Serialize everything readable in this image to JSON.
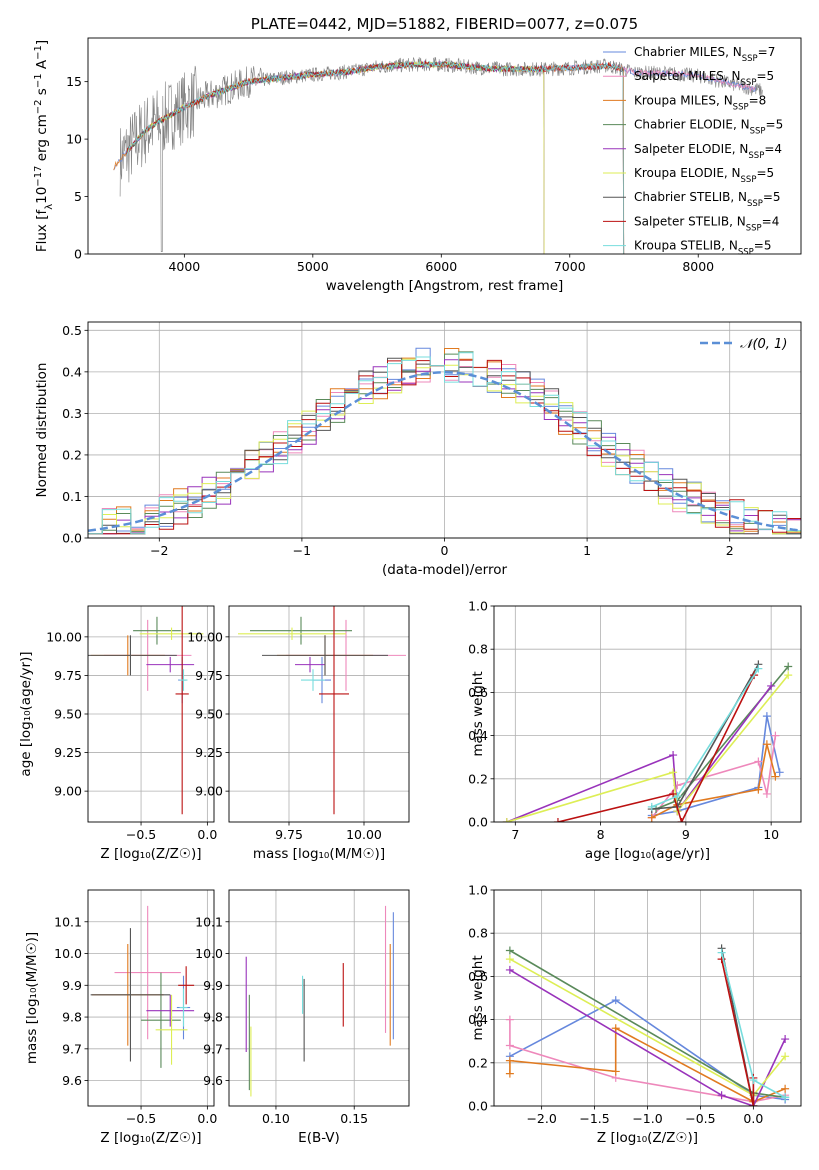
{
  "figure": {
    "title": "PLATE=0442, MJD=51882, FIBERID=0077, z=0.075"
  },
  "colors": {
    "Chabrier MILES": "#6688dd",
    "Salpeter MILES": "#ee88bb",
    "Kroupa MILES": "#e07a20",
    "Chabrier ELODIE": "#5a8a5a",
    "Salpeter ELODIE": "#9933bb",
    "Kroupa ELODIE": "#ddee55",
    "Chabrier STELIB": "#555555",
    "Salpeter STELIB": "#bb1111",
    "Kroupa STELIB": "#77dddd",
    "data": "#808080",
    "gauss": "#5b8fd6"
  },
  "chart_data": [
    {
      "id": "spectrum",
      "type": "line",
      "title": "PLATE=0442, MJD=51882, FIBERID=0077, z=0.075",
      "xlabel": "wavelength [Angstrom, rest frame]",
      "ylabel": "Flux [f_λ 10^-17 erg cm^-2 s^-1 A^-1]",
      "xlim": [
        3250,
        8800
      ],
      "ylim": [
        0,
        18.8
      ],
      "xticks": [
        4000,
        5000,
        6000,
        7000,
        8000
      ],
      "yticks": [
        0,
        5,
        10,
        15
      ],
      "grid": false,
      "legend_position": "right",
      "spectrum_shape": {
        "x": [
          3500,
          3600,
          3700,
          3800,
          4000,
          4200,
          4500,
          4800,
          5000,
          5300,
          5500,
          5800,
          6000,
          6300,
          6500,
          6800,
          7000,
          7300,
          7500,
          7800,
          8000,
          8300,
          8500
        ],
        "y": [
          8.2,
          9.5,
          10.8,
          11.5,
          12.8,
          13.8,
          15.0,
          15.4,
          15.6,
          15.9,
          16.3,
          16.5,
          16.5,
          16.2,
          16.1,
          16.1,
          16.2,
          16.4,
          15.8,
          15.7,
          15.5,
          14.7,
          14.2
        ]
      },
      "legend": [
        {
          "label": "Chabrier MILES",
          "n": "7"
        },
        {
          "label": "Salpeter MILES",
          "n": "5"
        },
        {
          "label": "Kroupa MILES",
          "n": "8"
        },
        {
          "label": "Chabrier ELODIE",
          "n": "5"
        },
        {
          "label": "Salpeter ELODIE",
          "n": "4"
        },
        {
          "label": "Kroupa ELODIE",
          "n": "5"
        },
        {
          "label": "Chabrier STELIB",
          "n": "5"
        },
        {
          "label": "Salpeter STELIB",
          "n": "4"
        },
        {
          "label": "Kroupa STELIB",
          "n": "5"
        }
      ],
      "nssp_label": "N",
      "nssp_sub": "SSP"
    },
    {
      "id": "residuals",
      "type": "histogram",
      "xlabel": "(data-model)/error",
      "ylabel": "Normed distribution",
      "xlim": [
        -2.5,
        2.5
      ],
      "ylim": [
        0,
        0.52
      ],
      "xticks": [
        -2,
        -1,
        0,
        1,
        2
      ],
      "yticks": [
        0.0,
        0.1,
        0.2,
        0.3,
        0.4,
        0.5
      ],
      "grid": true,
      "legend_position": "top-right",
      "gauss_label": "𝒩(0, 1)",
      "bin_width": 0.1
    },
    {
      "id": "age_vs_Z",
      "type": "scatter",
      "xlabel": "Z [log₁₀(Z/Z☉)]",
      "ylabel": "age  [log₁₀(age/yr)]",
      "xlim": [
        -0.9,
        0.05
      ],
      "ylim": [
        8.8,
        10.2
      ],
      "xticks": [
        -0.5,
        0.0
      ],
      "yticks": [
        9.0,
        9.25,
        9.5,
        9.75,
        10.0
      ],
      "grid": true,
      "points": [
        {
          "model": "Chabrier MILES",
          "x": -0.19,
          "y": 9.72,
          "xerr": 0.03,
          "yerr": 0.15
        },
        {
          "model": "Salpeter MILES",
          "x": -0.45,
          "y": 9.88,
          "xerr": 0.33,
          "yerr": 0.23
        },
        {
          "model": "Kroupa MILES",
          "x": -0.6,
          "y": 9.88,
          "xerr": 0.28,
          "yerr": 0.13
        },
        {
          "model": "Chabrier ELODIE",
          "x": -0.38,
          "y": 10.04,
          "xerr": 0.18,
          "yerr": 0.09
        },
        {
          "model": "Salpeter ELODIE",
          "x": -0.28,
          "y": 9.82,
          "xerr": 0.18,
          "yerr": 0.05
        },
        {
          "model": "Kroupa ELODIE",
          "x": -0.27,
          "y": 10.02,
          "xerr": 0.24,
          "yerr": 0.04
        },
        {
          "model": "Chabrier STELIB",
          "x": -0.58,
          "y": 9.88,
          "xerr": 0.35,
          "yerr": 0.13
        },
        {
          "model": "Salpeter STELIB",
          "x": -0.19,
          "y": 9.63,
          "xerr": 0.05,
          "yerr": 0.78
        },
        {
          "model": "Kroupa STELIB",
          "x": -0.18,
          "y": 9.72,
          "xerr": 0.03,
          "yerr": 0.07
        }
      ]
    },
    {
      "id": "age_vs_mass",
      "type": "scatter",
      "xlabel": "mass [log₁₀(M/M☉)]",
      "ylabel": "",
      "xlim": [
        9.55,
        10.15
      ],
      "ylim": [
        8.8,
        10.2
      ],
      "xticks": [
        9.75,
        10.0
      ],
      "yticks": [
        9.0,
        9.25,
        9.5,
        9.75,
        10.0
      ],
      "grid": true,
      "points": [
        {
          "model": "Chabrier MILES",
          "x": 9.86,
          "y": 9.72,
          "xerr": 0.03,
          "yerr": 0.15
        },
        {
          "model": "Salpeter MILES",
          "x": 9.94,
          "y": 9.88,
          "xerr": 0.2,
          "yerr": 0.23
        },
        {
          "model": "Kroupa MILES",
          "x": 9.87,
          "y": 9.88,
          "xerr": 0.16,
          "yerr": 0.13
        },
        {
          "model": "Chabrier ELODIE",
          "x": 9.79,
          "y": 10.04,
          "xerr": 0.17,
          "yerr": 0.09
        },
        {
          "model": "Salpeter ELODIE",
          "x": 9.82,
          "y": 9.82,
          "xerr": 0.05,
          "yerr": 0.05
        },
        {
          "model": "Kroupa ELODIE",
          "x": 9.76,
          "y": 10.02,
          "xerr": 0.18,
          "yerr": 0.04
        },
        {
          "model": "Chabrier STELIB",
          "x": 9.87,
          "y": 9.88,
          "xerr": 0.21,
          "yerr": 0.13
        },
        {
          "model": "Salpeter STELIB",
          "x": 9.9,
          "y": 9.63,
          "xerr": 0.05,
          "yerr": 0.78
        },
        {
          "model": "Kroupa STELIB",
          "x": 9.83,
          "y": 9.72,
          "xerr": 0.04,
          "yerr": 0.07
        }
      ]
    },
    {
      "id": "weight_vs_age",
      "type": "line",
      "xlabel": "age  [log₁₀(age/yr)]",
      "ylabel": "mass weight",
      "xlim": [
        6.75,
        10.35
      ],
      "ylim": [
        0,
        1.0
      ],
      "xticks": [
        7,
        8,
        9,
        10
      ],
      "yticks": [
        0.0,
        0.2,
        0.4,
        0.6,
        0.8,
        1.0
      ],
      "grid": true,
      "series": [
        {
          "model": "Chabrier MILES",
          "x": [
            8.6,
            8.9,
            9.85,
            9.95,
            10.1
          ],
          "y": [
            0.03,
            0.05,
            0.16,
            0.49,
            0.23
          ]
        },
        {
          "model": "Salpeter MILES",
          "x": [
            8.6,
            8.9,
            9.85,
            9.95,
            10.05
          ],
          "y": [
            0.02,
            0.17,
            0.28,
            0.13,
            0.4
          ]
        },
        {
          "model": "Kroupa MILES",
          "x": [
            8.6,
            8.9,
            9.85,
            9.95,
            10.05
          ],
          "y": [
            0.02,
            0.08,
            0.15,
            0.36,
            0.21
          ]
        },
        {
          "model": "Chabrier ELODIE",
          "x": [
            8.65,
            8.9,
            10.2
          ],
          "y": [
            0.06,
            0.1,
            0.72
          ]
        },
        {
          "model": "Salpeter ELODIE",
          "x": [
            6.9,
            8.85,
            8.9,
            10.0
          ],
          "y": [
            0.0,
            0.31,
            0.05,
            0.63
          ]
        },
        {
          "model": "Kroupa ELODIE",
          "x": [
            6.9,
            8.85,
            8.9,
            10.2
          ],
          "y": [
            0.0,
            0.23,
            0.05,
            0.68
          ]
        },
        {
          "model": "Chabrier STELIB",
          "x": [
            8.6,
            8.9,
            9.85
          ],
          "y": [
            0.06,
            0.07,
            0.73
          ]
        },
        {
          "model": "Salpeter STELIB",
          "x": [
            7.5,
            8.85,
            8.95,
            9.8
          ],
          "y": [
            0.0,
            0.13,
            0.0,
            0.68
          ]
        },
        {
          "model": "Kroupa STELIB",
          "x": [
            8.6,
            8.9,
            9.85
          ],
          "y": [
            0.07,
            0.12,
            0.71
          ]
        }
      ]
    },
    {
      "id": "mass_vs_Z",
      "type": "scatter",
      "xlabel": "Z [log₁₀(Z/Z☉)]",
      "ylabel": "mass [log₁₀(M/M☉)]",
      "xlim": [
        -0.9,
        0.05
      ],
      "ylim": [
        9.52,
        10.2
      ],
      "xticks": [
        -0.5,
        0.0
      ],
      "yticks": [
        9.6,
        9.7,
        9.8,
        9.9,
        10.0,
        10.1
      ],
      "grid": true,
      "points": [
        {
          "model": "Chabrier MILES",
          "x": -0.18,
          "y": 9.83,
          "xerr": 0.05,
          "yerr": 0.1
        },
        {
          "model": "Salpeter MILES",
          "x": -0.45,
          "y": 9.94,
          "xerr": 0.25,
          "yerr": 0.21
        },
        {
          "model": "Kroupa MILES",
          "x": -0.6,
          "y": 9.87,
          "xerr": 0.27,
          "yerr": 0.16
        },
        {
          "model": "Chabrier ELODIE",
          "x": -0.35,
          "y": 9.79,
          "xerr": 0.15,
          "yerr": 0.15
        },
        {
          "model": "Salpeter ELODIE",
          "x": -0.28,
          "y": 9.82,
          "xerr": 0.18,
          "yerr": 0.05
        },
        {
          "model": "Kroupa ELODIE",
          "x": -0.27,
          "y": 9.76,
          "xerr": 0.12,
          "yerr": 0.11
        },
        {
          "model": "Chabrier STELIB",
          "x": -0.58,
          "y": 9.87,
          "xerr": 0.3,
          "yerr": 0.21
        },
        {
          "model": "Salpeter STELIB",
          "x": -0.16,
          "y": 9.9,
          "xerr": 0.06,
          "yerr": 0.06
        },
        {
          "model": "Kroupa STELIB",
          "x": -0.18,
          "y": 9.83,
          "xerr": 0.03,
          "yerr": 0.06
        }
      ]
    },
    {
      "id": "mass_vs_ebv",
      "type": "scatter",
      "xlabel": "E(B-V)",
      "ylabel": "",
      "xlim": [
        0.07,
        0.185
      ],
      "ylim": [
        9.52,
        10.2
      ],
      "xticks": [
        0.1,
        0.15
      ],
      "yticks": [
        9.6,
        9.7,
        9.8,
        9.9,
        10.0,
        10.1
      ],
      "grid": true,
      "points": [
        {
          "model": "Chabrier MILES",
          "x": 0.175,
          "y": 9.93,
          "xerr": 0,
          "yerr": 0.2
        },
        {
          "model": "Salpeter MILES",
          "x": 0.17,
          "y": 9.95,
          "xerr": 0,
          "yerr": 0.2
        },
        {
          "model": "Kroupa MILES",
          "x": 0.173,
          "y": 9.87,
          "xerr": 0,
          "yerr": 0.16
        },
        {
          "model": "Chabrier ELODIE",
          "x": 0.083,
          "y": 9.72,
          "xerr": 0,
          "yerr": 0.15
        },
        {
          "model": "Salpeter ELODIE",
          "x": 0.081,
          "y": 9.84,
          "xerr": 0,
          "yerr": 0.15
        },
        {
          "model": "Kroupa ELODIE",
          "x": 0.084,
          "y": 9.66,
          "xerr": 0,
          "yerr": 0.11
        },
        {
          "model": "Chabrier STELIB",
          "x": 0.118,
          "y": 9.79,
          "xerr": 0,
          "yerr": 0.13
        },
        {
          "model": "Salpeter STELIB",
          "x": 0.143,
          "y": 9.87,
          "xerr": 0,
          "yerr": 0.1
        },
        {
          "model": "Kroupa STELIB",
          "x": 0.117,
          "y": 9.87,
          "xerr": 0,
          "yerr": 0.06
        }
      ]
    },
    {
      "id": "weight_vs_Z",
      "type": "line",
      "xlabel": "Z [log₁₀(Z/Z☉)]",
      "ylabel": "mass weight",
      "xlim": [
        -2.45,
        0.45
      ],
      "ylim": [
        0,
        1.0
      ],
      "xticks": [
        -2.0,
        -1.5,
        -1.0,
        -0.5,
        0.0
      ],
      "yticks": [
        0.0,
        0.2,
        0.4,
        0.6,
        0.8,
        1.0
      ],
      "grid": true,
      "series": [
        {
          "model": "Chabrier MILES",
          "x": [
            -2.3,
            -1.3,
            0.0,
            0.3
          ],
          "y": [
            0.23,
            0.49,
            0.05,
            0.03
          ]
        },
        {
          "model": "Salpeter MILES",
          "x": [
            -2.3,
            -2.3,
            -1.3,
            0.0,
            0.3
          ],
          "y": [
            0.4,
            0.28,
            0.13,
            0.02,
            0.05
          ]
        },
        {
          "model": "Kroupa MILES",
          "x": [
            -2.3,
            -2.3,
            -1.3,
            -1.3,
            0.0,
            0.3
          ],
          "y": [
            0.15,
            0.21,
            0.16,
            0.36,
            0.02,
            0.08
          ]
        },
        {
          "model": "Chabrier ELODIE",
          "x": [
            -2.3,
            0.0,
            0.3
          ],
          "y": [
            0.72,
            0.06,
            0.04
          ]
        },
        {
          "model": "Salpeter ELODIE",
          "x": [
            -2.3,
            -0.3,
            0.0,
            0.3
          ],
          "y": [
            0.63,
            0.05,
            0.0,
            0.31
          ]
        },
        {
          "model": "Kroupa ELODIE",
          "x": [
            -2.3,
            0.0,
            0.3
          ],
          "y": [
            0.68,
            0.05,
            0.23
          ]
        },
        {
          "model": "Chabrier STELIB",
          "x": [
            -0.3,
            0.0,
            0.0
          ],
          "y": [
            0.73,
            0.0,
            0.06
          ]
        },
        {
          "model": "Salpeter STELIB",
          "x": [
            -0.3,
            0.0,
            0.0
          ],
          "y": [
            0.68,
            0.0,
            0.13
          ]
        },
        {
          "model": "Kroupa STELIB",
          "x": [
            -0.3,
            0.0,
            0.3
          ],
          "y": [
            0.71,
            0.12,
            0.04
          ]
        }
      ]
    }
  ]
}
